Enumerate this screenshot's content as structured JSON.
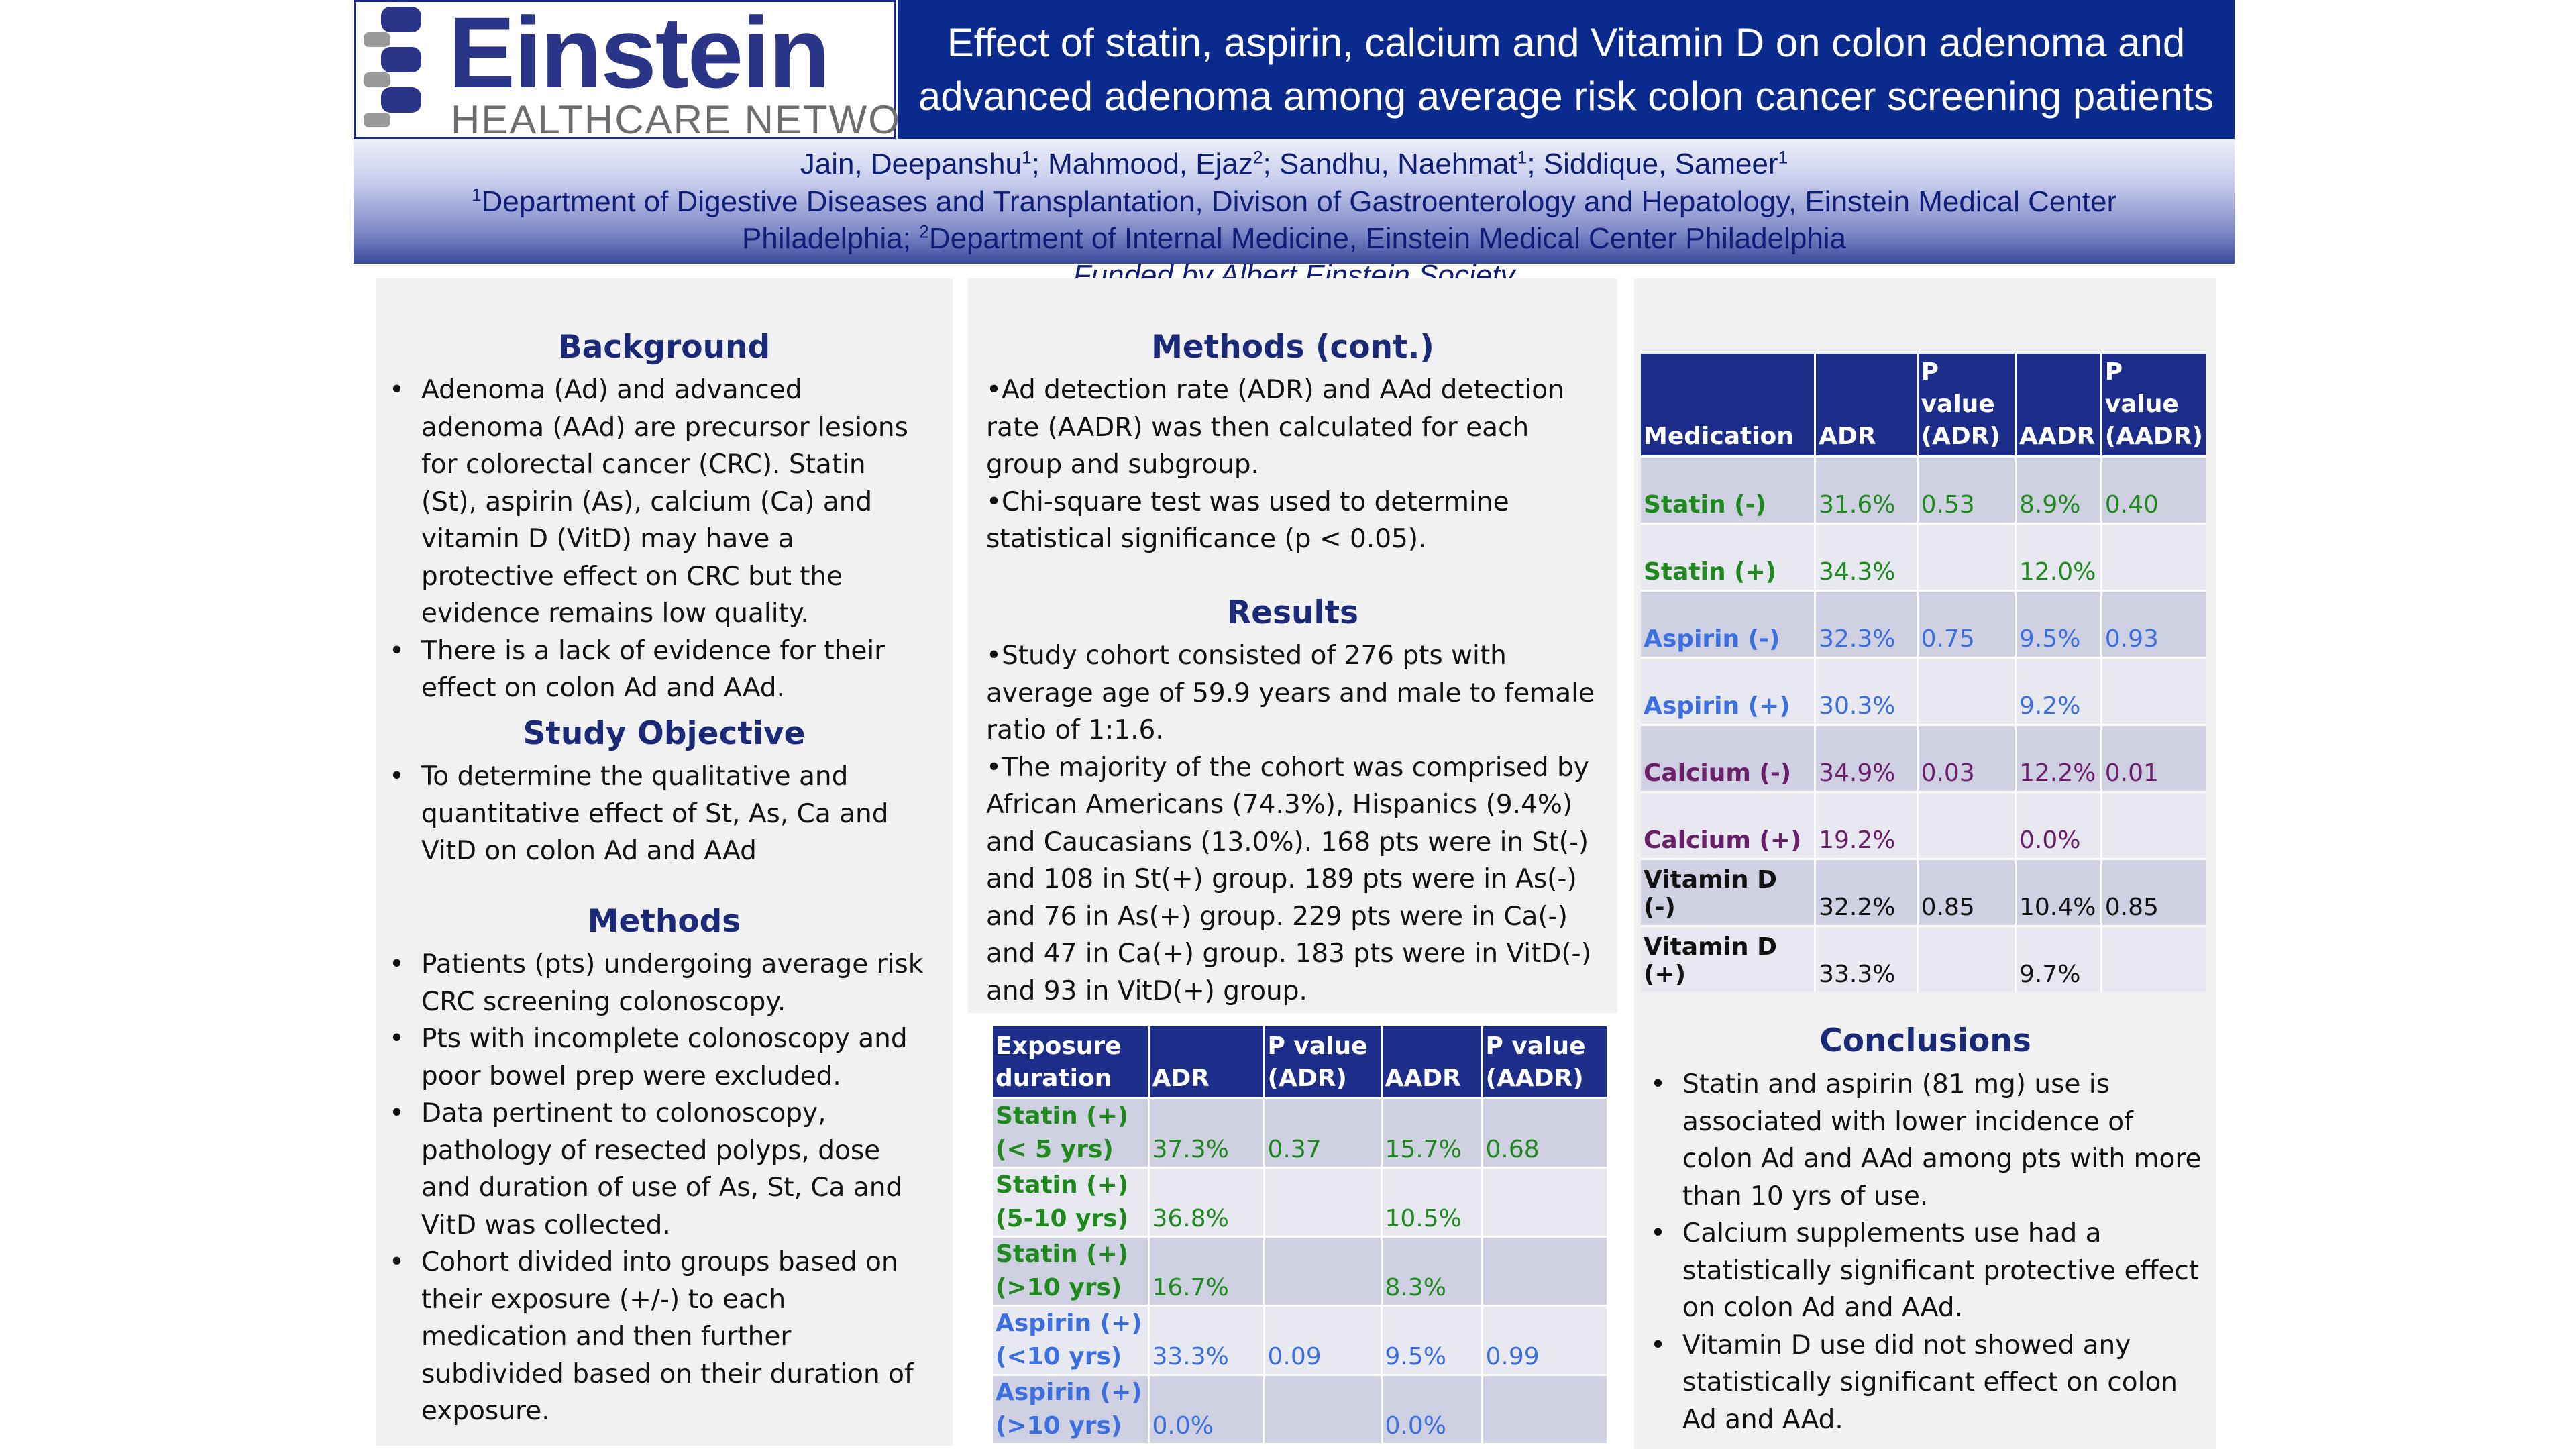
{
  "header": {
    "logo_word": "Einstein",
    "logo_sub": "HEALTHCARE NETWORK",
    "title": "Effect of statin, aspirin, calcium and Vitamin D on colon adenoma and advanced adenoma among average risk colon cancer screening patients",
    "authors": [
      {
        "name": "Jain, Deepanshu",
        "sup": "1",
        "sep": "; "
      },
      {
        "name": "Mahmood, Ejaz",
        "sup": "2",
        "sep": "; "
      },
      {
        "name": "Sandhu, Naehmat",
        "sup": "1",
        "sep": "; "
      },
      {
        "name": "Siddique, Sameer",
        "sup": "1",
        "sep": ""
      }
    ],
    "affil_sup1": "1",
    "affil_line1": "Department of Digestive Diseases and Transplantation, Divison of Gastroenterology and Hepatology, Einstein Medical Center",
    "affil_line2a": "Philadelphia; ",
    "affil_sup2": "2",
    "affil_line2b": "Department of Internal Medicine, Einstein Medical Center Philadelphia",
    "funded": "Funded by Albert Einstein Society"
  },
  "background": {
    "heading": "Background",
    "bullets": [
      "Adenoma (Ad) and advanced adenoma (AAd) are precursor lesions for colorectal cancer (CRC). Statin (St), aspirin (As), calcium (Ca) and vitamin D (VitD) may have a protective effect on CRC but the evidence remains low quality.",
      "There is a lack of evidence for their effect on colon Ad and AAd."
    ]
  },
  "objective": {
    "heading": "Study Objective",
    "bullets": [
      "To determine the qualitative and quantitative effect of St, As, Ca and VitD on colon Ad and AAd"
    ]
  },
  "methods": {
    "heading": "Methods",
    "bullets": [
      "Patients (pts) undergoing average risk CRC screening colonoscopy.",
      "Pts with incomplete colonoscopy and poor bowel prep were excluded.",
      "Data pertinent to colonoscopy, pathology of resected polyps, dose and duration of use of As, St, Ca and VitD was collected.",
      "Cohort divided into groups based on their exposure (+/-) to each medication and then further subdivided based on their duration of exposure."
    ]
  },
  "methods_cont": {
    "heading": "Methods (cont.)",
    "items": [
      "•Ad detection rate (ADR) and AAd detection rate (AADR) was then calculated for each group and subgroup.",
      "•Chi-square test was used to determine statistical significance (p < 0.05)."
    ]
  },
  "results": {
    "heading": "Results",
    "items": [
      "•Study cohort consisted of 276 pts with average age of 59.9 years and male to female ratio of 1:1.6.",
      "•The majority of the cohort was comprised by African Americans (74.3%), Hispanics (9.4%) and Caucasians (13.0%). 168 pts were in St(-) and 108 in St(+) group. 189 pts were in As(-) and 76 in As(+) group. 229 pts were in Ca(-) and 47 in Ca(+) group. 183 pts were in VitD(-) and 93 in VitD(+) group."
    ]
  },
  "exposure_table": {
    "headers": [
      "Exposure duration",
      "ADR",
      "P value (ADR)",
      "AADR",
      "P value (AADR)"
    ],
    "rows": [
      {
        "label": "Statin (+)(< 5 yrs)",
        "adr": "37.3%",
        "p_adr": "0.37",
        "aadr": "15.7%",
        "p_aadr": "0.68",
        "color": "#1e8a1e"
      },
      {
        "label": "Statin (+)(5-10 yrs)",
        "adr": "36.8%",
        "p_adr": "",
        "aadr": "10.5%",
        "p_aadr": "",
        "color": "#1e8a1e"
      },
      {
        "label": "Statin (+)(>10 yrs)",
        "adr": "16.7%",
        "p_adr": "",
        "aadr": "8.3%",
        "p_aadr": "",
        "color": "#1e8a1e"
      },
      {
        "label": "Aspirin (+)(<10 yrs)",
        "adr": "33.3%",
        "p_adr": "0.09",
        "aadr": "9.5%",
        "p_aadr": "0.99",
        "color": "#3b6fe0"
      },
      {
        "label": "Aspirin (+)(>10 yrs)",
        "adr": "0.0%",
        "p_adr": "",
        "aadr": "0.0%",
        "p_aadr": "",
        "color": "#3b6fe0"
      }
    ]
  },
  "medication_table": {
    "headers": [
      "Medication",
      "ADR",
      "P value (ADR)",
      "AADR",
      "P value (AADR)"
    ],
    "rows": [
      {
        "label": "Statin (-)",
        "adr": "31.6%",
        "p_adr": "0.53",
        "aadr": "8.9%",
        "p_aadr": "0.40",
        "color": "#1e8a1e"
      },
      {
        "label": "Statin (+)",
        "adr": "34.3%",
        "p_adr": "",
        "aadr": "12.0%",
        "p_aadr": "",
        "color": "#1e8a1e"
      },
      {
        "label": "Aspirin (-)",
        "adr": "32.3%",
        "p_adr": "0.75",
        "aadr": "9.5%",
        "p_aadr": "0.93",
        "color": "#3b6fe0"
      },
      {
        "label": "Aspirin (+)",
        "adr": "30.3%",
        "p_adr": "",
        "aadr": "9.2%",
        "p_aadr": "",
        "color": "#3b6fe0"
      },
      {
        "label": "Calcium (-)",
        "adr": "34.9%",
        "p_adr": "0.03",
        "aadr": "12.2%",
        "p_aadr": "0.01",
        "color": "#6b1f6b"
      },
      {
        "label": "Calcium (+)",
        "adr": "19.2%",
        "p_adr": "",
        "aadr": "0.0%",
        "p_aadr": "",
        "color": "#6b1f6b"
      },
      {
        "label": "Vitamin D (-)",
        "adr": "32.2%",
        "p_adr": "0.85",
        "aadr": "10.4%",
        "p_aadr": "0.85",
        "color": "#111111"
      },
      {
        "label": "Vitamin D (+)",
        "adr": "33.3%",
        "p_adr": "",
        "aadr": "9.7%",
        "p_aadr": "",
        "color": "#111111"
      }
    ]
  },
  "conclusions": {
    "heading": "Conclusions",
    "bullets": [
      "Statin and aspirin (81 mg) use is associated with lower incidence of colon Ad and AAd among pts with more than 10 yrs of use.",
      "Calcium supplements use had a statistically significant protective effect on colon Ad and AAd.",
      "Vitamin D use did not showed any statistically significant effect on colon Ad and AAd."
    ]
  },
  "colors": {
    "header_blue": "#0b2a8e",
    "heading_navy": "#1a2a78",
    "table_header": "#1c2d8a",
    "statin_green": "#1e8a1e",
    "aspirin_blue": "#3b6fe0",
    "calcium_purple": "#6b1f6b"
  }
}
